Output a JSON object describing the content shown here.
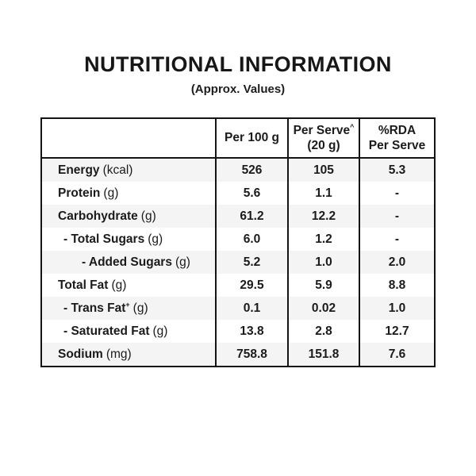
{
  "title": "NUTRITIONAL INFORMATION",
  "subtitle": "(Approx. Values)",
  "colors": {
    "text": "#1b1b1b",
    "border": "#141414",
    "stripe": "#f4f4f4",
    "background": "#ffffff"
  },
  "table": {
    "header": {
      "col0": "",
      "col1": "Per 100 g",
      "col2_line1": "Per Serve",
      "col2_sup": "^",
      "col2_line2": "(20 g)",
      "col3_line1": "%RDA",
      "col3_line2": "Per Serve"
    },
    "rows": [
      {
        "name": "Energy",
        "sup": "",
        "unit": "(kcal)",
        "indent": "0",
        "per100": "526",
        "perServe": "105",
        "rda": "5.3"
      },
      {
        "name": "Protein",
        "sup": "",
        "unit": "(g)",
        "indent": "0",
        "per100": "5.6",
        "perServe": "1.1",
        "rda": "-"
      },
      {
        "name": "Carbohydrate",
        "sup": "",
        "unit": "(g)",
        "indent": "0",
        "per100": "61.2",
        "perServe": "12.2",
        "rda": "-"
      },
      {
        "name": "- Total Sugars",
        "sup": "",
        "unit": "(g)",
        "indent": "1",
        "per100": "6.0",
        "perServe": "1.2",
        "rda": "-"
      },
      {
        "name": "- Added Sugars",
        "sup": "",
        "unit": "(g)",
        "indent": "2",
        "per100": "5.2",
        "perServe": "1.0",
        "rda": "2.0"
      },
      {
        "name": "Total Fat",
        "sup": "",
        "unit": "(g)",
        "indent": "0",
        "per100": "29.5",
        "perServe": "5.9",
        "rda": "8.8"
      },
      {
        "name": "- Trans Fat",
        "sup": "+",
        "unit": "(g)",
        "indent": "1",
        "per100": "0.1",
        "perServe": "0.02",
        "rda": "1.0"
      },
      {
        "name": "- Saturated Fat",
        "sup": "",
        "unit": "(g)",
        "indent": "1",
        "per100": "13.8",
        "perServe": "2.8",
        "rda": "12.7"
      },
      {
        "name": "Sodium",
        "sup": "",
        "unit": "(mg)",
        "indent": "0",
        "per100": "758.8",
        "perServe": "151.8",
        "rda": "7.6"
      }
    ]
  }
}
